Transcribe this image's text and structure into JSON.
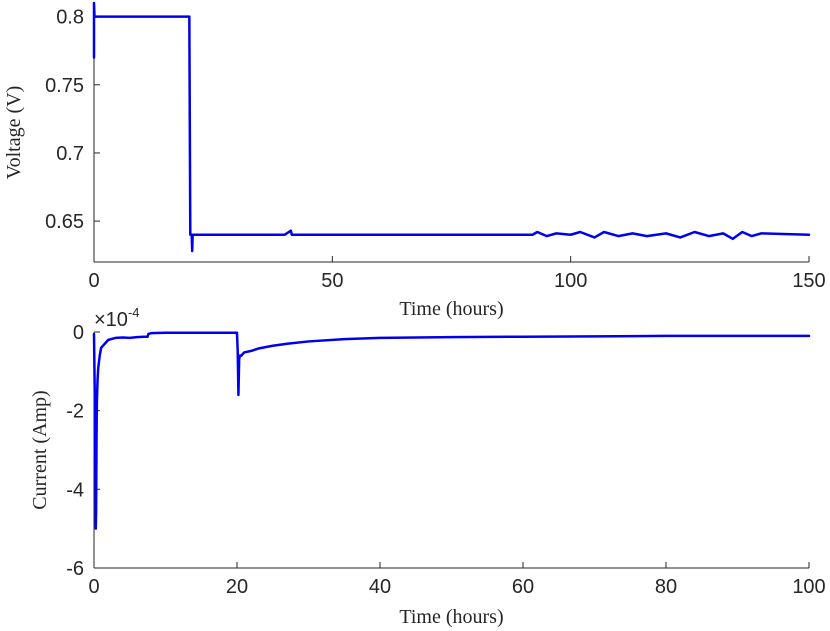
{
  "series_color": "#0000ee",
  "chart_data": [
    {
      "type": "line",
      "xlabel": "Time (hours)",
      "ylabel": "Voltage (V)",
      "xlim": [
        0,
        150
      ],
      "ylim": [
        0.62,
        0.81
      ],
      "xticks": [
        0,
        50,
        100,
        150
      ],
      "xtick_labels": [
        "0",
        "50",
        "100",
        "150"
      ],
      "yticks": [
        0.65,
        0.7,
        0.75,
        0.8
      ],
      "ytick_labels": [
        "0.65",
        "0.7",
        "0.75",
        "0.8"
      ],
      "grid": false,
      "series": [
        {
          "x": [
            0,
            0,
            0.1,
            0.3,
            0.3,
            20,
            20.2,
            20.5,
            20.6,
            20.7,
            21,
            40,
            41.3,
            41.5,
            41.7,
            60,
            92,
            93,
            95,
            97,
            100,
            102,
            105,
            107,
            110,
            113,
            116,
            120,
            123,
            126,
            129,
            132,
            134,
            136,
            138,
            140,
            150
          ],
          "y": [
            0.77,
            0.81,
            0.8,
            0.8,
            0.8,
            0.8,
            0.64,
            0.64,
            0.628,
            0.64,
            0.64,
            0.64,
            0.643,
            0.64,
            0.64,
            0.64,
            0.64,
            0.642,
            0.639,
            0.641,
            0.64,
            0.642,
            0.638,
            0.642,
            0.639,
            0.641,
            0.639,
            0.641,
            0.638,
            0.642,
            0.639,
            0.641,
            0.637,
            0.642,
            0.639,
            0.641,
            0.64
          ]
        }
      ]
    },
    {
      "type": "line",
      "xlabel": "Time (hours)",
      "ylabel": "Current (Amp)",
      "exponent_label": "×10",
      "exponent_power": "-4",
      "xlim": [
        0,
        100
      ],
      "ylim": [
        -6,
        0
      ],
      "xticks": [
        0,
        20,
        40,
        60,
        80,
        100
      ],
      "xtick_labels": [
        "0",
        "20",
        "40",
        "60",
        "80",
        "100"
      ],
      "yticks": [
        -6,
        -4,
        -2,
        0
      ],
      "ytick_labels": [
        "-6",
        "-4",
        "-2",
        "0"
      ],
      "grid": false,
      "series": [
        {
          "x": [
            0,
            0.1,
            0.2,
            0.25,
            0.3,
            0.35,
            0.4,
            0.5,
            0.6,
            0.8,
            1,
            1.5,
            2,
            3,
            4,
            5,
            6,
            7,
            7.5,
            7.6,
            8,
            10,
            15,
            20,
            20.1,
            20.2,
            20.3,
            20.4,
            20.6,
            21,
            22,
            23,
            25,
            27,
            30,
            35,
            40,
            50,
            60,
            70,
            80,
            90,
            100
          ],
          "y": [
            -0.05,
            -1.5,
            -3.5,
            -5.0,
            -4.5,
            -2.8,
            -1.8,
            -1.2,
            -0.9,
            -0.6,
            -0.4,
            -0.3,
            -0.2,
            -0.15,
            -0.14,
            -0.15,
            -0.13,
            -0.12,
            -0.12,
            -0.05,
            -0.03,
            -0.02,
            -0.02,
            -0.02,
            -0.5,
            -1.6,
            -0.7,
            -0.6,
            -0.6,
            -0.52,
            -0.48,
            -0.42,
            -0.35,
            -0.3,
            -0.24,
            -0.18,
            -0.15,
            -0.13,
            -0.12,
            -0.11,
            -0.1,
            -0.1,
            -0.1
          ]
        }
      ]
    }
  ]
}
